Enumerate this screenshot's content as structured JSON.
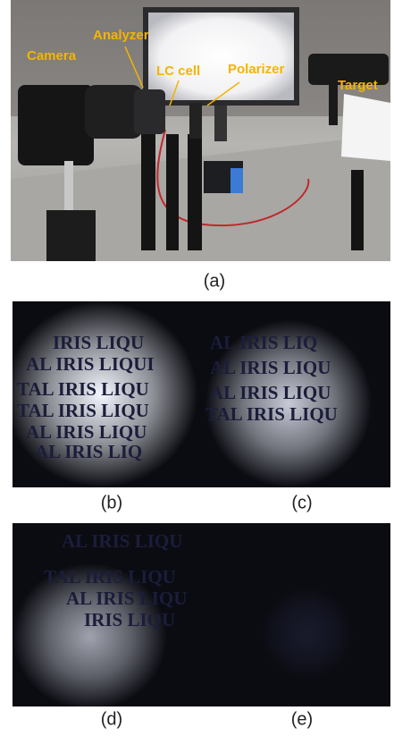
{
  "figure": {
    "panel_a": {
      "annotations": [
        "Camera",
        "Analyzer",
        "LC cell",
        "Polarizer",
        "Target"
      ],
      "label": "(a)"
    },
    "panels": [
      {
        "label": "(b)",
        "image_text": [
          "IRIS LIQU",
          "AL IRIS LIQUI",
          "TAL IRIS LIQU",
          "TAL IRIS LIQU",
          "AL IRIS LIQU",
          "AL IRIS LIQ"
        ]
      },
      {
        "label": "(c)",
        "image_text": [
          "AL IRIS LIQ",
          "AL IRIS LIQU",
          "AL IRIS LIQU",
          "TAL IRIS LIQU"
        ]
      },
      {
        "label": "(d)",
        "image_text": [
          "AL IRIS LIQU",
          "TAL IRIS LIQU",
          "AL IRIS LIQU",
          "IRIS LIQU"
        ]
      },
      {
        "label": "(e)",
        "image_text": []
      }
    ]
  }
}
